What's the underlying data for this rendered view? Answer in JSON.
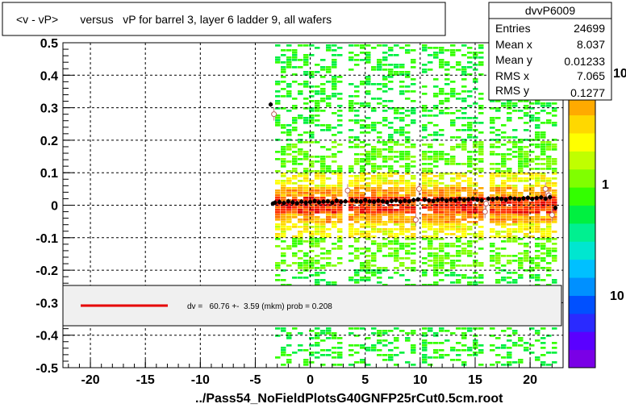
{
  "chart_data": {
    "type": "scatter",
    "title": "<v - vP>       versus   vP for barrel 3, layer 6 ladder 9, all wafers",
    "xlabel": "",
    "ylabel": "",
    "footer": "../Pass54_NoFieldPlotsG40GNFP25rCut0.5cm.root",
    "xlim": [
      -22.5,
      23
    ],
    "ylim": [
      -0.5,
      0.5
    ],
    "x_ticks": [
      -20,
      -15,
      -10,
      -5,
      0,
      5,
      10,
      15,
      20
    ],
    "x_tick_labels": [
      "-20",
      "-15",
      "-10",
      "-5",
      "0",
      "5",
      "10",
      "15",
      "20"
    ],
    "y_ticks": [
      -0.5,
      -0.4,
      -0.3,
      -0.2,
      -0.1,
      0,
      0.1,
      0.2,
      0.3,
      0.4,
      0.5
    ],
    "y_tick_labels": [
      "-0.5",
      "-0.4",
      "-0.3",
      "-0.2",
      "-0.1",
      "0",
      "0.1",
      "0.2",
      "0.3",
      "0.4",
      "0.5"
    ],
    "grid": true,
    "stats": {
      "name": "dvvP6009",
      "rows": [
        {
          "label": "Entries",
          "value": "24699"
        },
        {
          "label": "Mean x",
          "value": "8.037"
        },
        {
          "label": "Mean y",
          "value": "0.01233"
        },
        {
          "label": "RMS x",
          "value": "7.065"
        },
        {
          "label": "RMS y",
          "value": "0.1277"
        }
      ]
    },
    "palette_labels": [
      "10",
      "1",
      "10"
    ],
    "fit_legend": "dv =   60.76 +-  3.59 (mkm) prob = 0.208",
    "fit_line": {
      "x": [
        -3.5,
        22.3
      ],
      "y": [
        0.006,
        0.024
      ],
      "color": "#e60000"
    },
    "hist_x_range": [
      -3.2,
      22.2
    ],
    "hist_gaps": [
      [
        3.2,
        3.6
      ],
      [
        9.8,
        10.2
      ],
      [
        15.8,
        16.2
      ]
    ],
    "profile_black": {
      "x": [
        -3.6,
        -3.4,
        -3.2,
        -2.8,
        -2.4,
        -2.0,
        -1.6,
        -1.2,
        -0.8,
        -0.4,
        0.0,
        0.4,
        0.8,
        1.2,
        1.6,
        2.0,
        2.4,
        2.8,
        3.2,
        3.8,
        4.2,
        4.6,
        5.0,
        5.4,
        5.8,
        6.2,
        6.6,
        7.0,
        7.4,
        7.8,
        8.2,
        8.6,
        9.0,
        9.4,
        9.8,
        10.4,
        10.8,
        11.2,
        11.6,
        12.0,
        12.4,
        12.8,
        13.2,
        13.6,
        14.0,
        14.4,
        14.8,
        15.2,
        15.6,
        16.2,
        16.6,
        17.0,
        17.4,
        17.8,
        18.2,
        18.6,
        19.0,
        19.4,
        19.8,
        20.2,
        20.6,
        21.0,
        21.4,
        21.8,
        22.3
      ],
      "y": [
        0.31,
        0.005,
        0.008,
        0.01,
        0.007,
        0.012,
        0.009,
        0.006,
        0.011,
        0.008,
        0.01,
        0.013,
        0.009,
        0.011,
        0.012,
        0.008,
        0.014,
        0.01,
        0.012,
        0.015,
        0.013,
        0.011,
        0.016,
        0.012,
        0.01,
        0.014,
        0.012,
        0.009,
        0.013,
        0.015,
        0.011,
        0.014,
        0.012,
        0.016,
        0.018,
        0.017,
        0.015,
        0.013,
        0.016,
        0.018,
        0.014,
        0.017,
        0.015,
        0.019,
        0.016,
        0.018,
        0.02,
        0.017,
        0.015,
        0.02,
        0.018,
        0.021,
        0.019,
        0.017,
        0.022,
        0.02,
        0.018,
        0.021,
        0.023,
        0.019,
        0.022,
        0.024,
        0.02,
        0.025,
        -0.008
      ]
    },
    "profile_open": {
      "x": [
        -3.3,
        3.4,
        9.6,
        9.9,
        15.9,
        16.0,
        21.4,
        21.7,
        22.0
      ],
      "y": [
        0.28,
        0.045,
        -0.045,
        0.05,
        -0.02,
        0.005,
        0.05,
        0.03,
        -0.03
      ]
    },
    "palette_colors": [
      "#7a00e6",
      "#5a00ff",
      "#2a2aff",
      "#0050ff",
      "#0090ff",
      "#00c0ff",
      "#00e6d0",
      "#00f090",
      "#00f040",
      "#33ff00",
      "#80ff00",
      "#c0ff00",
      "#ffff00",
      "#ffd800",
      "#ffaa00",
      "#ff7000",
      "#ff3000",
      "#e60000"
    ]
  }
}
